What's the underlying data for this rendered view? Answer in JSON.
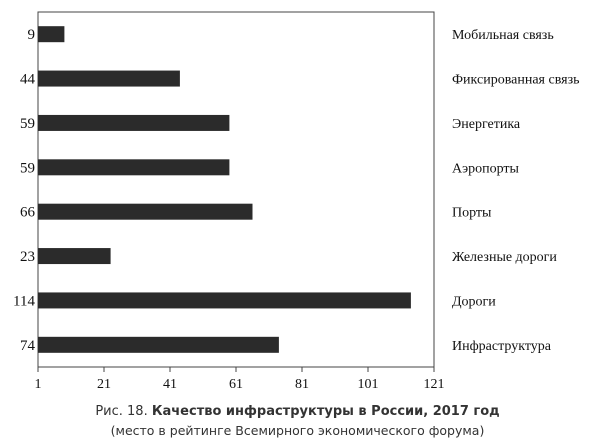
{
  "chart_data": {
    "type": "bar",
    "orientation": "horizontal",
    "categories": [
      "Мобильная связь",
      "Фиксированная связь",
      "Энергетика",
      "Аэропорты",
      "Порты",
      "Железные дороги",
      "Дороги",
      "Инфраструктура"
    ],
    "values": [
      9,
      44,
      59,
      59,
      66,
      23,
      114,
      74
    ],
    "value_labels": [
      "9",
      "44",
      "59",
      "59",
      "66",
      "23",
      "114",
      "74"
    ],
    "xlim": [
      1,
      121
    ],
    "xticks": [
      1,
      21,
      41,
      61,
      81,
      101,
      121
    ],
    "xtick_labels": [
      "1",
      "21",
      "41",
      "61",
      "81",
      "101",
      "121"
    ],
    "grid": false,
    "legend": "none",
    "bar_color": "#2b2b2b",
    "caption": {
      "prefix": "Рис. 18.",
      "title": "Качество инфраструктуры в России, 2017 год",
      "subtitle": "(место в рейтинге Всемирного экономического форума)"
    }
  }
}
